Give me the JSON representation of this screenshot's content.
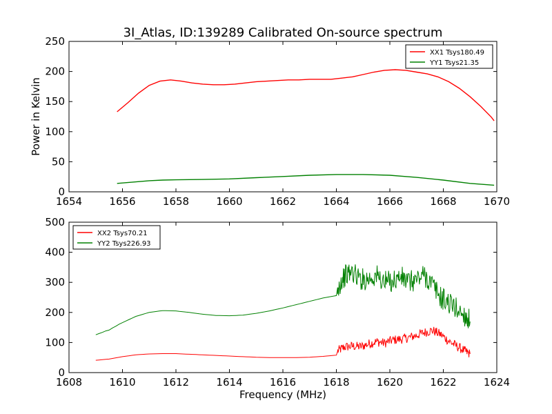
{
  "figure": {
    "title": "3I_Atlas, ID:139289 Calibrated On-source spectrum",
    "colors": {
      "red": "#ff0000",
      "green": "#008000",
      "axes": "#000000",
      "background": "#ffffff"
    }
  },
  "chart_data": [
    {
      "type": "line",
      "title": "3I_Atlas, ID:139289 Calibrated On-source spectrum",
      "xlabel": "",
      "ylabel": "Power in Kelvin",
      "xlim": [
        1654,
        1670
      ],
      "ylim": [
        0,
        250
      ],
      "xticks": [
        1654,
        1656,
        1658,
        1660,
        1662,
        1664,
        1666,
        1668,
        1670
      ],
      "yticks": [
        0,
        50,
        100,
        150,
        200,
        250
      ],
      "legend_position": "top-right",
      "grid": false,
      "series": [
        {
          "name": "XX1 Tsys180.49",
          "color": "#ff0000",
          "x": [
            1655.8,
            1656.2,
            1656.6,
            1657.0,
            1657.4,
            1657.8,
            1658.2,
            1658.6,
            1659.0,
            1659.4,
            1659.8,
            1660.2,
            1660.6,
            1661.0,
            1661.4,
            1661.8,
            1662.2,
            1662.6,
            1663.0,
            1663.4,
            1663.8,
            1664.2,
            1664.6,
            1665.0,
            1665.4,
            1665.8,
            1666.2,
            1666.6,
            1667.0,
            1667.4,
            1667.8,
            1668.2,
            1668.6,
            1669.0,
            1669.4,
            1669.8,
            1669.9
          ],
          "y": [
            133,
            148,
            164,
            177,
            184,
            186,
            184,
            181,
            179,
            178,
            178,
            179,
            181,
            183,
            184,
            185,
            186,
            186,
            187,
            187,
            187,
            189,
            191,
            195,
            199,
            202,
            203,
            202,
            199,
            196,
            191,
            183,
            172,
            158,
            142,
            124,
            118
          ]
        },
        {
          "name": "YY1 Tsys21.35",
          "color": "#008000",
          "x": [
            1655.8,
            1656.5,
            1657.0,
            1657.5,
            1658.0,
            1659.0,
            1660.0,
            1661.0,
            1662.0,
            1663.0,
            1664.0,
            1665.0,
            1666.0,
            1667.0,
            1668.0,
            1669.0,
            1669.9
          ],
          "y": [
            14,
            16.5,
            18.5,
            19.5,
            20,
            20.5,
            21.5,
            23.5,
            25.5,
            27.5,
            28.8,
            28.8,
            27.5,
            24,
            19.5,
            14,
            11
          ]
        }
      ]
    },
    {
      "type": "line",
      "title": "",
      "xlabel": "Frequency (MHz)",
      "ylabel": "",
      "xlim": [
        1608,
        1624
      ],
      "ylim": [
        0,
        500
      ],
      "xticks": [
        1608,
        1610,
        1612,
        1614,
        1616,
        1618,
        1620,
        1622,
        1624
      ],
      "yticks": [
        0,
        100,
        200,
        300,
        400,
        500
      ],
      "legend_position": "top-left",
      "grid": false,
      "noise_note": "values are approximate envelope points; the original trace shows strong high-frequency noise between 1618 and 1623 MHz",
      "series": [
        {
          "name": "XX2 Tsys70.21",
          "color": "#ff0000",
          "x": [
            1609.0,
            1609.5,
            1610.0,
            1610.5,
            1611.0,
            1611.5,
            1612.0,
            1612.5,
            1613.0,
            1613.5,
            1614.0,
            1614.5,
            1615.0,
            1615.5,
            1616.0,
            1616.5,
            1617.0,
            1617.5,
            1618.0,
            1618.05,
            1618.3,
            1618.6,
            1618.9,
            1619.2,
            1619.5,
            1619.8,
            1620.1,
            1620.4,
            1620.7,
            1621.0,
            1621.3,
            1621.6,
            1621.9,
            1622.2,
            1622.5,
            1622.8,
            1623.0
          ],
          "y": [
            41,
            45,
            53,
            59,
            62,
            63,
            63,
            61,
            59,
            57,
            55,
            53,
            51,
            50,
            50,
            50,
            51,
            54,
            58,
            72,
            85,
            88,
            86,
            95,
            103,
            98,
            108,
            111,
            116,
            124,
            134,
            140,
            127,
            105,
            88,
            72,
            62
          ]
        },
        {
          "name": "YY2 Tsys226.93",
          "color": "#008000",
          "x": [
            1609.0,
            1609.5,
            1610.0,
            1610.5,
            1611.0,
            1611.5,
            1612.0,
            1612.5,
            1613.0,
            1613.5,
            1614.0,
            1614.5,
            1615.0,
            1615.5,
            1616.0,
            1616.5,
            1617.0,
            1617.5,
            1618.0,
            1618.05,
            1618.3,
            1618.6,
            1618.9,
            1619.2,
            1619.5,
            1619.8,
            1620.1,
            1620.4,
            1620.7,
            1621.0,
            1621.3,
            1621.6,
            1621.9,
            1622.2,
            1622.5,
            1622.8,
            1623.0
          ],
          "y": [
            124,
            142,
            166,
            187,
            200,
            206,
            205,
            200,
            194,
            190,
            189,
            191,
            197,
            205,
            215,
            226,
            237,
            248,
            256,
            285,
            320,
            335,
            310,
            312,
            322,
            300,
            305,
            318,
            300,
            310,
            325,
            290,
            250,
            232,
            212,
            190,
            170
          ]
        }
      ]
    }
  ]
}
